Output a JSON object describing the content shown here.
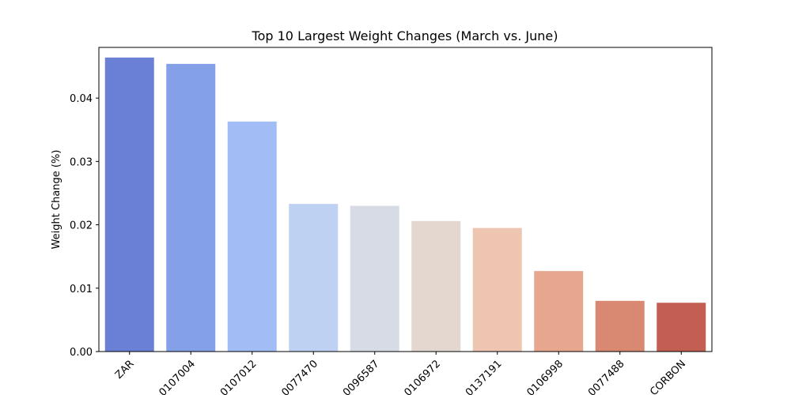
{
  "chart_data": {
    "type": "bar",
    "title": "Top 10 Largest Weight Changes (March vs. June)",
    "xlabel": "",
    "ylabel": "Weight Change (%)",
    "ylim": [
      0,
      0.048
    ],
    "yticks": [
      0.0,
      0.01,
      0.02,
      0.03,
      0.04
    ],
    "ytick_labels": [
      "0.00",
      "0.01",
      "0.02",
      "0.03",
      "0.04"
    ],
    "grid": false,
    "categories": [
      "ZAR",
      "0107004",
      "0107012",
      "0077470",
      "0096587",
      "0106972",
      "0137191",
      "0106998",
      "0077488",
      "CORBON"
    ],
    "values": [
      0.0464,
      0.0454,
      0.0363,
      0.0233,
      0.023,
      0.0206,
      0.0195,
      0.0127,
      0.008,
      0.0077
    ],
    "colors": [
      "#6a80d6",
      "#84a1e8",
      "#a2bdf5",
      "#bfd1f2",
      "#d6dbe6",
      "#e4d7cf",
      "#edc5b0",
      "#e6a78e",
      "#d98871",
      "#c25f52"
    ]
  }
}
